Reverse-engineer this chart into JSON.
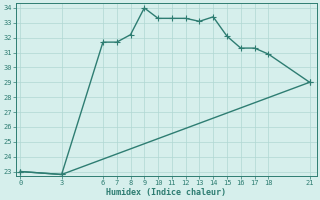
{
  "xlabel": "Humidex (Indice chaleur)",
  "line1_x": [
    0,
    3,
    6,
    7,
    8,
    9,
    10,
    11,
    12,
    13,
    14,
    15,
    16,
    17,
    18,
    21
  ],
  "line1_y": [
    23,
    22.8,
    31.7,
    31.7,
    32.2,
    34.0,
    33.3,
    33.3,
    33.3,
    33.1,
    33.4,
    32.1,
    31.3,
    31.3,
    30.9,
    29.0
  ],
  "line2_x": [
    0,
    3,
    21
  ],
  "line2_y": [
    23.0,
    22.8,
    29.0
  ],
  "line_color": "#2e7d72",
  "bg_color": "#d6efec",
  "grid_color": "#b0d8d3",
  "ylim_min": 23,
  "ylim_max": 34,
  "yticks": [
    23,
    24,
    25,
    26,
    27,
    28,
    29,
    30,
    31,
    32,
    33,
    34
  ],
  "xticks": [
    0,
    3,
    6,
    7,
    8,
    9,
    10,
    11,
    12,
    13,
    14,
    15,
    16,
    17,
    18,
    21
  ],
  "markersize": 2.5,
  "linewidth": 1.0,
  "tick_fontsize": 5.0,
  "xlabel_fontsize": 6.0
}
